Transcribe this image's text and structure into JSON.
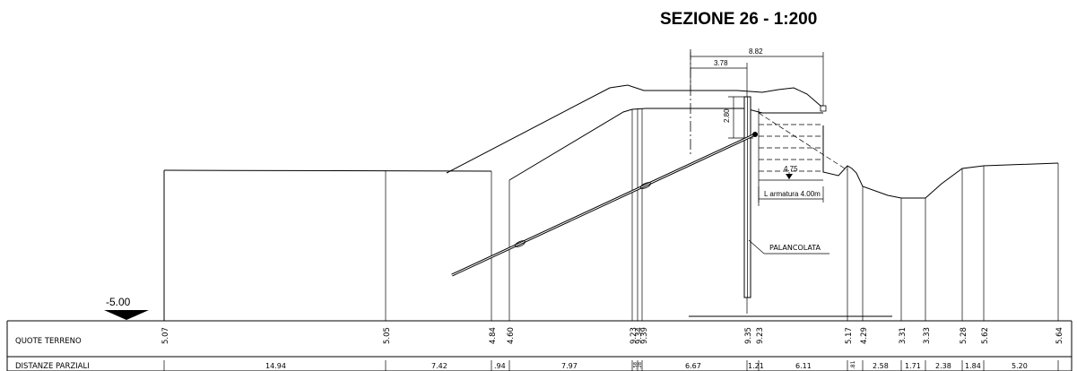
{
  "title": "SEZIONE 26 - 1:200",
  "dimensions": {
    "total_width": "8.82",
    "partial_width": "3.78",
    "wall_height": "2.80",
    "depth": "4.75",
    "armature_label": "L armatura 4.00m"
  },
  "labels": {
    "sheet_pile": "PALANCOLATA",
    "reference_level": "-5.00"
  },
  "table": {
    "row1_label": "QUOTE TERRENO",
    "row2_label": "DISTANZE PARZIALI",
    "elevations": [
      "5.07",
      "5.05",
      "4.84",
      "4.60",
      "9.23",
      "9.34",
      "9.39",
      "9.35",
      "9.23",
      "5.17",
      "4.29",
      "3.31",
      "3.33",
      "5.28",
      "5.62",
      "5.64"
    ],
    "partial_distances": [
      "14.94",
      "7.42",
      ".94",
      "7.97",
      ".58",
      ".28",
      "6.67",
      "1.21",
      "6.11",
      ".81",
      "2.58",
      "1.71",
      "2.38",
      "1.84",
      "5.20"
    ]
  },
  "colors": {
    "ink": "#000000",
    "paper": "#ffffff"
  }
}
